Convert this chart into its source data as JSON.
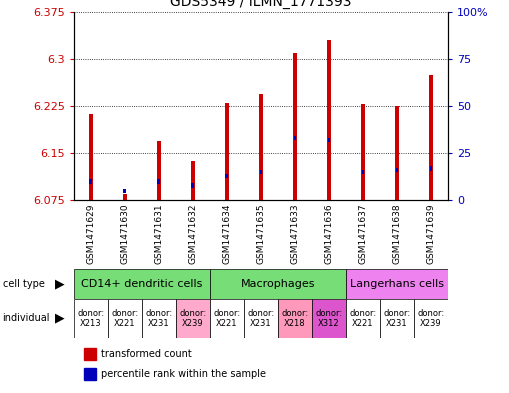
{
  "title": "GDS5349 / ILMN_1771393",
  "samples": [
    "GSM1471629",
    "GSM1471630",
    "GSM1471631",
    "GSM1471632",
    "GSM1471634",
    "GSM1471635",
    "GSM1471633",
    "GSM1471636",
    "GSM1471637",
    "GSM1471638",
    "GSM1471639"
  ],
  "red_values": [
    6.213,
    6.085,
    6.17,
    6.138,
    6.23,
    6.245,
    6.31,
    6.33,
    6.228,
    6.225,
    6.275
  ],
  "blue_values_pct": [
    10,
    5,
    10,
    8,
    13,
    15,
    33,
    32,
    15,
    16,
    17
  ],
  "ymin": 6.075,
  "ymax": 6.375,
  "y_ticks": [
    6.075,
    6.15,
    6.225,
    6.3,
    6.375
  ],
  "right_y_ticks": [
    0,
    25,
    50,
    75,
    100
  ],
  "right_y_labels": [
    "0",
    "25",
    "50",
    "75",
    "100%"
  ],
  "cell_type_groups": [
    {
      "label": "CD14+ dendritic cells",
      "start": 0,
      "end": 4,
      "color": "#77dd77"
    },
    {
      "label": "Macrophages",
      "start": 4,
      "end": 8,
      "color": "#77dd77"
    },
    {
      "label": "Langerhans cells",
      "start": 8,
      "end": 11,
      "color": "#ee82ee"
    }
  ],
  "individual_labels": [
    "donor:\nX213",
    "donor:\nX221",
    "donor:\nX231",
    "donor:\nX239",
    "donor:\nX221",
    "donor:\nX231",
    "donor:\nX218",
    "donor:\nX312",
    "donor:\nX221",
    "donor:\nX231",
    "donor:\nX239"
  ],
  "individual_colors": [
    "#ee82ee",
    "#ee82ee",
    "#ee82ee",
    "#ee82ee",
    "#ee82ee",
    "#ee82ee",
    "#ee82ee",
    "#ee82ee",
    "#ee82ee",
    "#ee82ee",
    "#ee82ee"
  ],
  "bar_width": 0.12,
  "blue_bar_width": 0.08,
  "bg_color": "#ffffff",
  "plot_area_bg": "#ffffff",
  "xtick_area_bg": "#cccccc",
  "bar_color_red": "#cc0000",
  "bar_color_blue": "#0000bb",
  "grid_color": "#000000",
  "tick_color_left": "#cc0000",
  "tick_color_right": "#0000bb",
  "title_fontsize": 10,
  "tick_fontsize": 8,
  "sample_fontsize": 6.5,
  "cell_type_fontsize": 8,
  "ind_fontsize": 6
}
